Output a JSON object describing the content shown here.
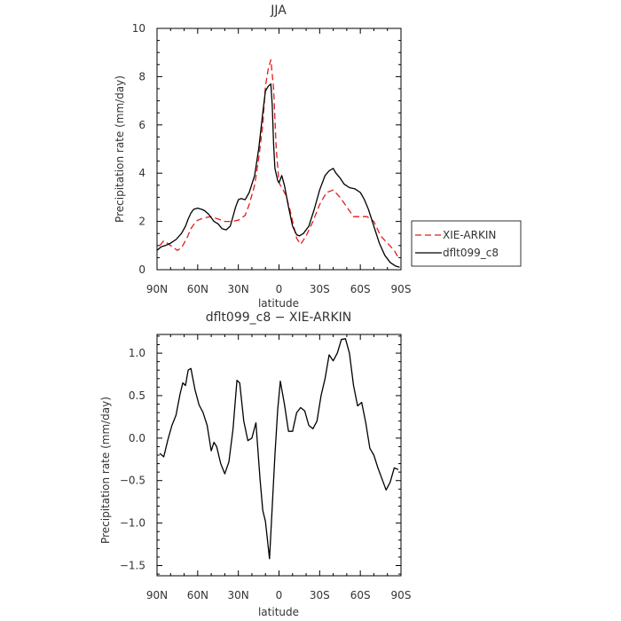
{
  "colors": {
    "observed": "#e41a1c",
    "model": "#000000",
    "axis": "#000000",
    "text": "#333333"
  },
  "chart_data": [
    {
      "type": "line",
      "title": "JJA",
      "xlabel": "latitude",
      "ylabel": "Precipitation rate (mm/day)",
      "x_tick_labels": [
        "90N",
        "60N",
        "30N",
        "0",
        "30S",
        "60S",
        "90S"
      ],
      "x_tick_values": [
        90,
        60,
        30,
        0,
        -30,
        -60,
        -90
      ],
      "xlim": [
        90,
        -90
      ],
      "y_tick_labels": [
        "0",
        "2",
        "4",
        "6",
        "8",
        "10"
      ],
      "ylim": [
        0,
        10
      ],
      "legend": [
        "XIE-ARKIN",
        "dflt099_c8"
      ],
      "legend_position": "right",
      "series": [
        {
          "name": "XIE-ARKIN",
          "color": "#e41a1c",
          "style": "dashed",
          "x": [
            88,
            85,
            80,
            75,
            72,
            68,
            65,
            62,
            60,
            55,
            50,
            45,
            40,
            35,
            30,
            25,
            22,
            18,
            15,
            12,
            10,
            8,
            6,
            4,
            2,
            0,
            -2,
            -5,
            -8,
            -10,
            -13,
            -16,
            -20,
            -25,
            -30,
            -35,
            -40,
            -45,
            -50,
            -55,
            -60,
            -65,
            -70,
            -75,
            -80,
            -85,
            -88
          ],
          "y": [
            1.0,
            1.2,
            1.0,
            0.8,
            0.9,
            1.3,
            1.7,
            1.95,
            2.05,
            2.15,
            2.2,
            2.1,
            2.0,
            2.0,
            2.05,
            2.25,
            2.7,
            3.5,
            4.6,
            6.0,
            7.6,
            8.3,
            8.7,
            7.5,
            5.0,
            3.6,
            3.4,
            3.1,
            2.5,
            2.0,
            1.3,
            1.05,
            1.4,
            2.0,
            2.7,
            3.2,
            3.3,
            3.0,
            2.6,
            2.2,
            2.2,
            2.2,
            2.0,
            1.4,
            1.1,
            0.8,
            0.5
          ]
        },
        {
          "name": "dflt099_c8",
          "color": "#000000",
          "style": "solid",
          "x": [
            90,
            87,
            84,
            80,
            76,
            72,
            69,
            67,
            65,
            63,
            60,
            57,
            55,
            52,
            48,
            45,
            42,
            39,
            36,
            34,
            32,
            30,
            28,
            25,
            22,
            18,
            15,
            12,
            10,
            8,
            6,
            5,
            4,
            3,
            1,
            0,
            -2,
            -4,
            -7,
            -10,
            -13,
            -15,
            -18,
            -22,
            -26,
            -30,
            -34,
            -37,
            -40,
            -42,
            -45,
            -48,
            -52,
            -56,
            -60,
            -63,
            -66,
            -70,
            -74,
            -78,
            -82,
            -86,
            -89
          ],
          "y": [
            0.8,
            0.95,
            1.0,
            1.1,
            1.25,
            1.5,
            1.8,
            2.1,
            2.35,
            2.5,
            2.55,
            2.5,
            2.45,
            2.3,
            2.0,
            1.9,
            1.7,
            1.65,
            1.8,
            2.2,
            2.6,
            2.9,
            2.95,
            2.9,
            3.2,
            3.9,
            5.0,
            6.5,
            7.4,
            7.6,
            7.7,
            6.8,
            5.2,
            4.2,
            3.7,
            3.6,
            3.9,
            3.5,
            2.6,
            1.8,
            1.45,
            1.4,
            1.5,
            1.8,
            2.5,
            3.3,
            3.9,
            4.1,
            4.2,
            4.0,
            3.8,
            3.55,
            3.4,
            3.35,
            3.2,
            2.9,
            2.5,
            1.8,
            1.1,
            0.6,
            0.3,
            0.15,
            0.1
          ]
        }
      ]
    },
    {
      "type": "line",
      "title": "dflt099_c8 − XIE-ARKIN",
      "xlabel": "latitude",
      "ylabel": "Precipitation rate (mm/day)",
      "x_tick_labels": [
        "90N",
        "60N",
        "30N",
        "0",
        "30S",
        "60S",
        "90S"
      ],
      "x_tick_values": [
        90,
        60,
        30,
        0,
        -30,
        -60,
        -90
      ],
      "xlim": [
        90,
        -90
      ],
      "y_tick_labels": [
        "−1.5",
        "−1.0",
        "−0.5",
        "0.0",
        "0.5",
        "1.0"
      ],
      "y_tick_values": [
        -1.5,
        -1.0,
        -0.5,
        0.0,
        0.5,
        1.0
      ],
      "ylim": [
        -1.62,
        1.22
      ],
      "series": [
        {
          "name": "dflt099_c8",
          "color": "#000000",
          "style": "solid",
          "x": [
            88,
            85,
            82,
            79,
            76,
            73,
            71,
            69,
            67,
            65,
            62,
            59,
            56,
            53,
            50,
            48,
            46,
            43,
            40,
            37,
            34,
            31,
            29,
            26,
            23,
            20,
            17,
            14,
            12,
            10,
            7,
            5,
            3,
            1,
            -1,
            -4,
            -7,
            -10,
            -13,
            -16,
            -19,
            -22,
            -25,
            -28,
            -31,
            -34,
            -37,
            -40,
            -43,
            -46,
            -49,
            -52,
            -55,
            -58,
            -61,
            -64,
            -67,
            -70,
            -73,
            -76,
            -79,
            -82,
            -85,
            -88
          ],
          "y": [
            -0.18,
            -0.22,
            -0.02,
            0.15,
            0.27,
            0.52,
            0.65,
            0.62,
            0.8,
            0.82,
            0.57,
            0.39,
            0.3,
            0.15,
            -0.15,
            -0.05,
            -0.1,
            -0.3,
            -0.42,
            -0.28,
            0.1,
            0.68,
            0.65,
            0.2,
            -0.03,
            0.0,
            0.18,
            -0.48,
            -0.85,
            -0.98,
            -1.42,
            -0.8,
            -0.2,
            0.33,
            0.67,
            0.4,
            0.08,
            0.08,
            0.3,
            0.36,
            0.32,
            0.15,
            0.11,
            0.2,
            0.5,
            0.7,
            0.98,
            0.91,
            1.0,
            1.16,
            1.17,
            1.0,
            0.62,
            0.38,
            0.42,
            0.18,
            -0.12,
            -0.2,
            -0.35,
            -0.48,
            -0.61,
            -0.52,
            -0.35,
            -0.37
          ]
        }
      ]
    }
  ]
}
